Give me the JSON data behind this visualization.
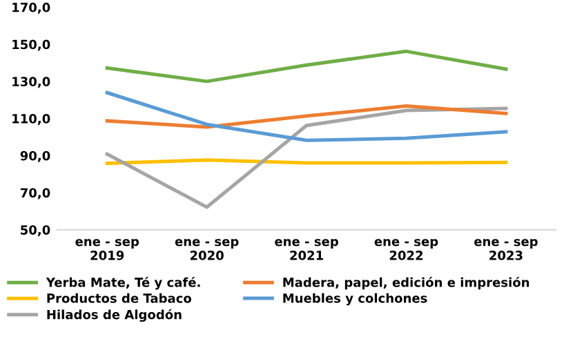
{
  "chart_data": {
    "type": "line",
    "categories": [
      "ene - sep\n2019",
      "ene - sep\n2020",
      "ene - sep\n2021",
      "ene - sep\n2022",
      "ene - sep\n2023"
    ],
    "series": [
      {
        "name": "Yerba Mate, Té y café.",
        "color": "#70ad47",
        "values": [
          137.2,
          130.0,
          138.8,
          146.2,
          136.6
        ]
      },
      {
        "name": "Productos de Tabaco",
        "color": "#ffc000",
        "values": [
          85.8,
          87.6,
          86.0,
          86.0,
          86.3
        ]
      },
      {
        "name": "Hilados de Algodón",
        "color": "#a5a5a5",
        "values": [
          90.8,
          62.2,
          106.2,
          114.3,
          115.4
        ]
      },
      {
        "name": "Madera, papel, edición e impresión",
        "color": "#ed7d31",
        "values": [
          108.7,
          105.4,
          111.3,
          116.7,
          112.7
        ]
      },
      {
        "name": "Muebles y colchones",
        "color": "#5b9bd5",
        "values": [
          123.9,
          106.8,
          98.2,
          99.3,
          102.8
        ]
      }
    ],
    "ylim": [
      50,
      170
    ],
    "yticks": [
      {
        "value": 50,
        "label": "50,0"
      },
      {
        "value": 70,
        "label": "70,0"
      },
      {
        "value": 90,
        "label": "90,0"
      },
      {
        "value": 110,
        "label": "110,0"
      },
      {
        "value": 130,
        "label": "130,0"
      },
      {
        "value": 150,
        "label": "150,0"
      },
      {
        "value": 170,
        "label": "170,0"
      }
    ],
    "grid": false,
    "legend": "bottom",
    "marker": "none",
    "line_style": "solid"
  }
}
